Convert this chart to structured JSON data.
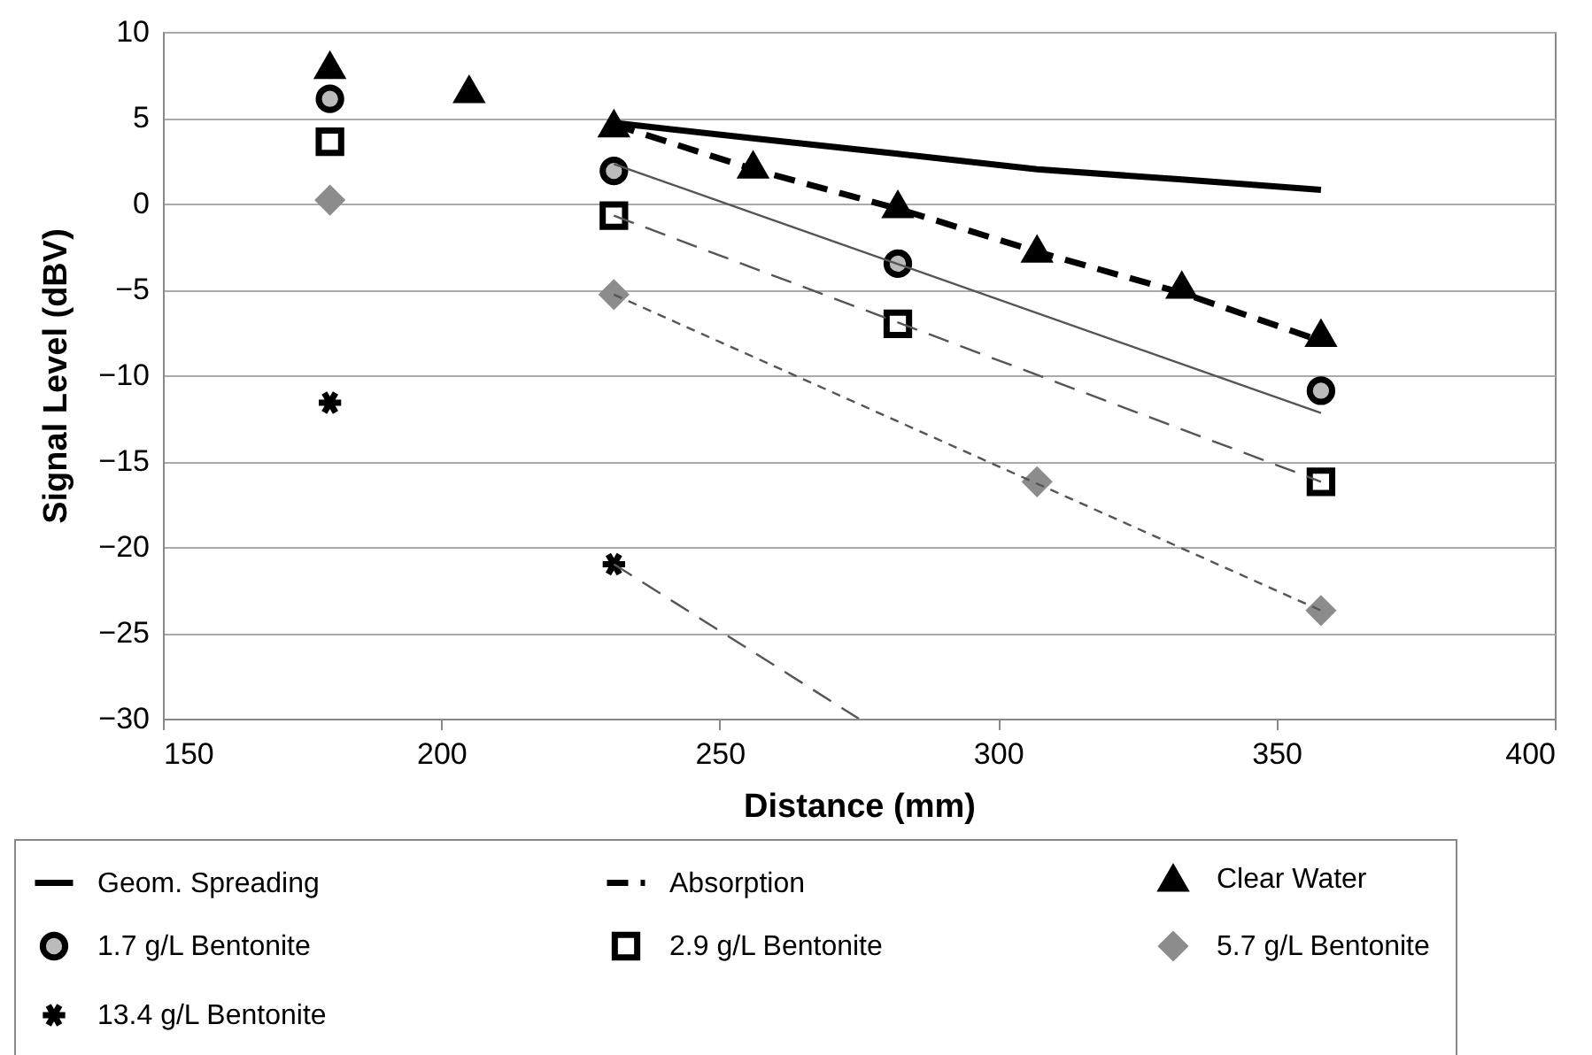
{
  "chart_data": {
    "type": "scatter",
    "xlabel": "Distance (mm)",
    "ylabel": "Signal Level (dBV)",
    "xlim": [
      150,
      400
    ],
    "xticks": [
      150,
      200,
      250,
      300,
      350,
      400
    ],
    "ylim": [
      -30,
      10
    ],
    "yticks": [
      -30,
      -25,
      -20,
      -15,
      -10,
      -5,
      0,
      5,
      10
    ],
    "grid": "y",
    "legend": "bottom",
    "series": [
      {
        "name": "Geom. Spreading",
        "type": "line",
        "line_style": "solid",
        "color": "#000000",
        "x": [
          231,
          256,
          282,
          307,
          333,
          358
        ],
        "values": [
          4.7,
          3.8,
          2.9,
          2.0,
          1.4,
          0.8
        ]
      },
      {
        "name": "Absorption",
        "type": "line",
        "line_style": "dashed",
        "color": "#000000",
        "x": [
          231,
          256,
          282,
          307,
          333,
          358
        ],
        "values": [
          4.6,
          2.0,
          -0.3,
          -2.8,
          -5.2,
          -8.0
        ]
      },
      {
        "name": "Clear Water",
        "marker": "triangle",
        "color": "#000000",
        "x": [
          180,
          205,
          231,
          256,
          282,
          307,
          333,
          358
        ],
        "values": [
          8.0,
          6.6,
          4.6,
          2.2,
          -0.1,
          -2.7,
          -4.8,
          -7.6
        ]
      },
      {
        "name": "1.7 g/L Bentonite",
        "marker": "circle",
        "color": "#bbbbbb",
        "x": [
          180,
          231,
          282,
          358
        ],
        "values": [
          6.1,
          1.9,
          -3.5,
          -10.9
        ]
      },
      {
        "name": "2.9 g/L Bentonite",
        "marker": "square",
        "color": "#ffffff",
        "x": [
          180,
          231,
          282,
          358
        ],
        "values": [
          3.6,
          -0.7,
          -7.0,
          -16.2
        ]
      },
      {
        "name": "5.7 g/L Bentonite",
        "marker": "diamond",
        "color": "#8c8c8c",
        "x": [
          180,
          231,
          307,
          358
        ],
        "values": [
          0.2,
          -5.3,
          -16.2,
          -23.7
        ]
      },
      {
        "name": "13.4 g/L Bentonite",
        "marker": "cross",
        "color": "#000000",
        "x": [
          180,
          231
        ],
        "values": [
          -11.6,
          -21.0
        ]
      },
      {
        "type": "line",
        "line_style": "solid",
        "color": "#555555",
        "x": [
          231,
          358
        ],
        "values": [
          2.3,
          -12.2
        ]
      },
      {
        "type": "line",
        "line_style": "dashed",
        "color": "#555555",
        "x": [
          231,
          358
        ],
        "values": [
          -0.7,
          -16.2
        ]
      },
      {
        "type": "line",
        "line_style": "dotted",
        "color": "#555555",
        "x": [
          231,
          358
        ],
        "values": [
          -5.3,
          -23.7
        ]
      },
      {
        "type": "line",
        "line_style": "dashed",
        "color": "#555555",
        "x": [
          231,
          275
        ],
        "values": [
          -21.0,
          -30.0
        ]
      }
    ]
  }
}
